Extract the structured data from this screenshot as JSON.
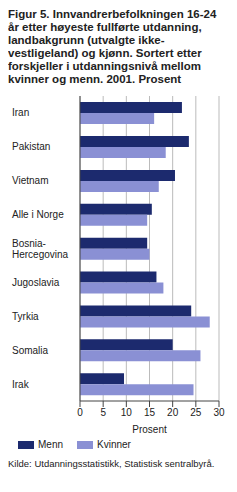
{
  "chart_data": {
    "type": "bar",
    "orientation": "horizontal",
    "title": "Figur 5. Innvandrerbefolkningen 16-24 år etter  høyeste fullførte utdanning, landbakgrunn (utvalgte ikke-vestligeland) og kjønn. Sortert etter forskjeller i utdanningsnivå mellom kvinner og menn. 2001. Prosent",
    "source": "Kilde: Utdanningsstatistikk, Statistisk sentralbyrå.",
    "x_label": "Prosent",
    "categories": [
      "Iran",
      "Pakistan",
      "Vietnam",
      "Alle i Norge",
      "Bosnia-Hercegovina",
      "Jugoslavia",
      "Tyrkia",
      "Somalia",
      "Irak"
    ],
    "series": [
      {
        "name": "Menn",
        "color": "#1c2a6e",
        "values": [
          22,
          23.5,
          20.5,
          15.5,
          14.5,
          16.5,
          24,
          20,
          9.5
        ]
      },
      {
        "name": "Kvinner",
        "color": "#8a90d4",
        "values": [
          16,
          18.5,
          17,
          14.5,
          15,
          18,
          28,
          26,
          24.5
        ]
      }
    ],
    "xlim": [
      0,
      30
    ],
    "xticks": [
      0,
      5,
      10,
      15,
      20,
      25,
      30
    ],
    "grid": true,
    "legend": "bottom"
  }
}
